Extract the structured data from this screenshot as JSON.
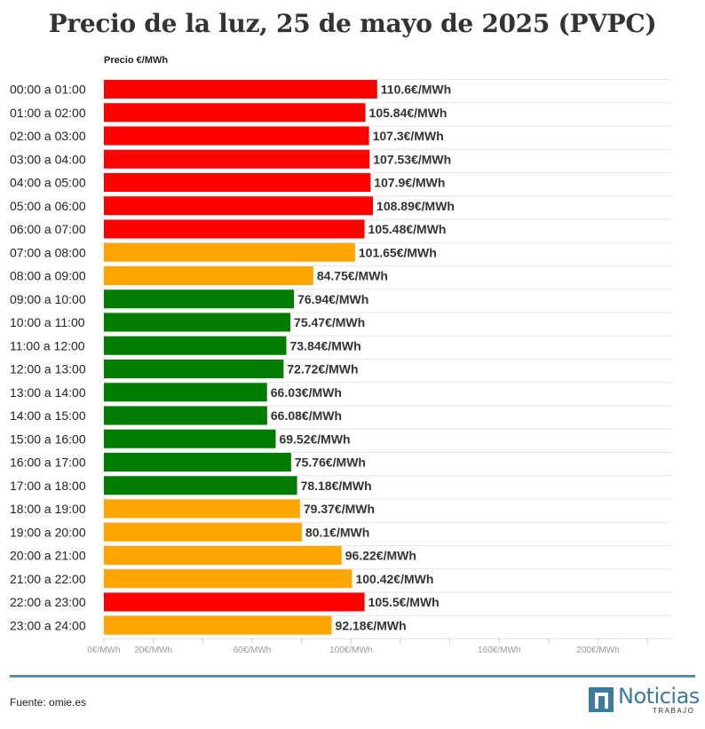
{
  "chart_data": {
    "type": "bar",
    "orientation": "horizontal",
    "title": "Precio de la luz, 25 de mayo de 2025 (PVPC)",
    "ylabel": "Precio €/MWh",
    "xlim": [
      0,
      230
    ],
    "x_ticks": [
      {
        "value": 0,
        "label": "0€/MWh"
      },
      {
        "value": 20,
        "label": "20€/MWh"
      },
      {
        "value": 60,
        "label": "60€/MWh"
      },
      {
        "value": 100,
        "label": "100€/MWh"
      },
      {
        "value": 160,
        "label": "160€/MWh"
      },
      {
        "value": 200,
        "label": "200€/MWh"
      }
    ],
    "grid_values": [
      0,
      40,
      80,
      120,
      140,
      180,
      220
    ],
    "categories": [
      "00:00 a 01:00",
      "01:00 a 02:00",
      "02:00 a 03:00",
      "03:00 a 04:00",
      "04:00 a 05:00",
      "05:00 a 06:00",
      "06:00 a 07:00",
      "07:00 a 08:00",
      "08:00 a 09:00",
      "09:00 a 10:00",
      "10:00 a 11:00",
      "11:00 a 12:00",
      "12:00 a 13:00",
      "13:00 a 14:00",
      "14:00 a 15:00",
      "15:00 a 16:00",
      "16:00 a 17:00",
      "17:00 a 18:00",
      "18:00 a 19:00",
      "19:00 a 20:00",
      "20:00 a 21:00",
      "21:00 a 22:00",
      "22:00 a 23:00",
      "23:00 a 24:00"
    ],
    "values": [
      110.6,
      105.84,
      107.3,
      107.53,
      107.9,
      108.89,
      105.48,
      101.65,
      84.75,
      76.94,
      75.47,
      73.84,
      72.72,
      66.03,
      66.08,
      69.52,
      75.76,
      78.18,
      79.37,
      80.1,
      96.22,
      100.42,
      105.5,
      92.18
    ],
    "value_labels": [
      "110.6€/MWh",
      "105.84€/MWh",
      "107.3€/MWh",
      "107.53€/MWh",
      "107.9€/MWh",
      "108.89€/MWh",
      "105.48€/MWh",
      "101.65€/MWh",
      "84.75€/MWh",
      "76.94€/MWh",
      "75.47€/MWh",
      "73.84€/MWh",
      "72.72€/MWh",
      "66.03€/MWh",
      "66.08€/MWh",
      "69.52€/MWh",
      "75.76€/MWh",
      "78.18€/MWh",
      "79.37€/MWh",
      "80.1€/MWh",
      "96.22€/MWh",
      "100.42€/MWh",
      "105.5€/MWh",
      "92.18€/MWh"
    ],
    "levels": [
      "high",
      "high",
      "high",
      "high",
      "high",
      "high",
      "high",
      "mid",
      "mid",
      "low",
      "low",
      "low",
      "low",
      "low",
      "low",
      "low",
      "low",
      "low",
      "mid",
      "mid",
      "mid",
      "mid",
      "high",
      "mid"
    ],
    "colors": {
      "high": "#ff0000",
      "mid": "#ffa500",
      "low": "#007c00",
      "grid": "#e6e6e6",
      "tick_text": "#9a9a9a"
    }
  },
  "footer": {
    "source": "Fuente: omie.es",
    "brand_name": "Noticias",
    "brand_sub": "TRABAJO"
  }
}
